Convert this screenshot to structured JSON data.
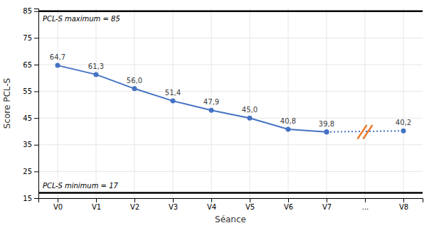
{
  "chart_data": {
    "type": "line",
    "xlabel": "Séance",
    "ylabel": "Score PCL-S",
    "xlim": [
      -0.5,
      9.5
    ],
    "xticks": [
      {
        "value": 0,
        "label": "V0"
      },
      {
        "value": 1,
        "label": "V1"
      },
      {
        "value": 2,
        "label": "V2"
      },
      {
        "value": 3,
        "label": "V3"
      },
      {
        "value": 4,
        "label": "V4"
      },
      {
        "value": 5,
        "label": "V5"
      },
      {
        "value": 6,
        "label": "V6"
      },
      {
        "value": 7,
        "label": "V7"
      },
      {
        "value": 8,
        "label": "..."
      },
      {
        "value": 9,
        "label": "V8"
      }
    ],
    "ylim": [
      15,
      86
    ],
    "yticks": [
      15,
      25,
      35,
      45,
      55,
      65,
      75,
      85
    ],
    "grid": true,
    "data_labels": true,
    "series": [
      {
        "x": [
          0,
          1,
          2,
          3,
          4,
          5,
          6,
          7
        ],
        "values": [
          64.7,
          61.3,
          56.0,
          51.4,
          47.9,
          45.0,
          40.8,
          39.8
        ],
        "value_labels": [
          "64,7",
          "61,3",
          "56,0",
          "51,4",
          "47,9",
          "45,0",
          "40,8",
          "39,8"
        ],
        "color": "#4472C4",
        "marker": "circle",
        "line_style": "solid"
      },
      {
        "x": [
          7,
          9
        ],
        "values": [
          39.8,
          40.2
        ],
        "value_labels": [
          null,
          "40,2"
        ],
        "color": "#4472C4",
        "marker": "circle",
        "line_style": "dotted"
      }
    ],
    "annotations": [
      {
        "y": 85,
        "text": "PCL-S maximum = 85"
      },
      {
        "y": 17,
        "text": "PCL-S minimum = 17"
      }
    ],
    "break_mark": {
      "x": 8,
      "y": 39.8,
      "color": "#ED7D31"
    }
  }
}
